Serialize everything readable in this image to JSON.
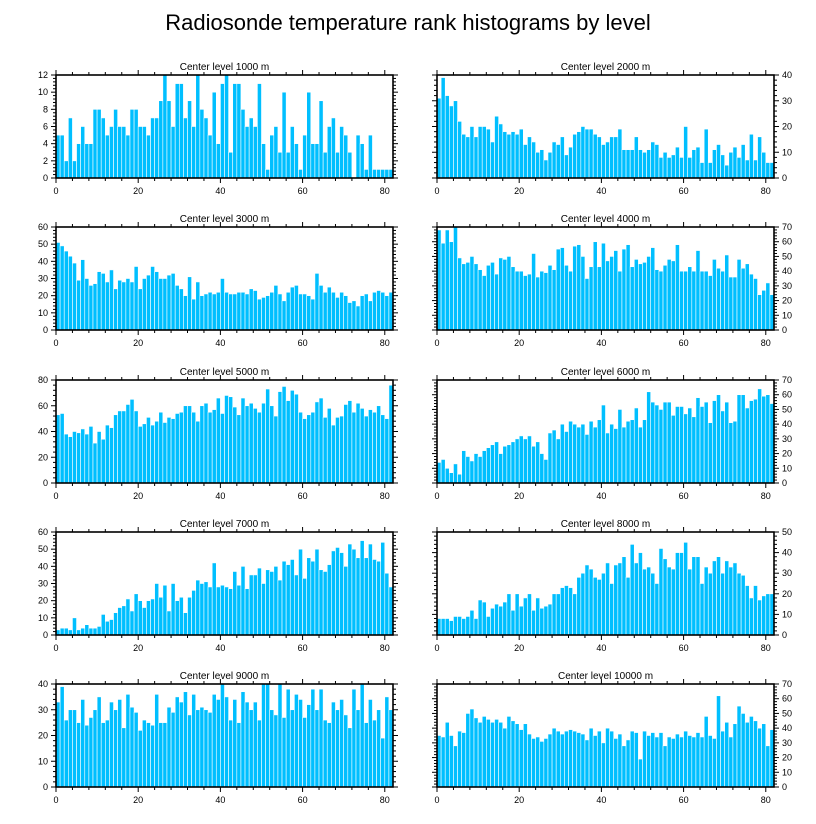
{
  "title": "Radiosonde temperature rank histograms by level",
  "colors": {
    "bar": "#00bfff",
    "frame": "#000000",
    "background": "#ffffff"
  },
  "chart_data": [
    {
      "type": "bar",
      "title": "Center level 1000 m",
      "xlabel": "",
      "ylabel": "",
      "xlim": [
        0,
        82
      ],
      "ylim": [
        0,
        12
      ],
      "xticks": [
        0,
        20,
        40,
        60,
        80
      ],
      "yticks": [
        0,
        2,
        4,
        6,
        8,
        10,
        12
      ],
      "yaxis_side": "left",
      "values": [
        5,
        5,
        2,
        7,
        2,
        4,
        6,
        4,
        4,
        8,
        8,
        7,
        5,
        6,
        8,
        6,
        6,
        5,
        8,
        8,
        6,
        6,
        5,
        7,
        7,
        9,
        12,
        9,
        6,
        11,
        11,
        7,
        9,
        6,
        12,
        8,
        7,
        5,
        10,
        4,
        11,
        12,
        3,
        11,
        11,
        8,
        6,
        7,
        6,
        11,
        4,
        1,
        5,
        6,
        3,
        10,
        3,
        6,
        4,
        1,
        5,
        10,
        4,
        4,
        9,
        3,
        6,
        7,
        3,
        6,
        5,
        3,
        0,
        5,
        4,
        1,
        5,
        1,
        1,
        1,
        1,
        1
      ]
    },
    {
      "type": "bar",
      "title": "Center level 2000 m",
      "xlabel": "",
      "ylabel": "",
      "xlim": [
        0,
        82
      ],
      "ylim": [
        0,
        40
      ],
      "xticks": [
        0,
        20,
        40,
        60,
        80
      ],
      "yticks": [
        0,
        10,
        20,
        30,
        40
      ],
      "yaxis_side": "right",
      "values": [
        31,
        39,
        32,
        28,
        30,
        22,
        17,
        16,
        20,
        16,
        20,
        20,
        19,
        14,
        24,
        21,
        18,
        17,
        18,
        17,
        19,
        13,
        16,
        14,
        10,
        11,
        7,
        10,
        14,
        13,
        16,
        9,
        12,
        17,
        18,
        20,
        19,
        19,
        17,
        16,
        13,
        14,
        16,
        16,
        19,
        11,
        11,
        11,
        16,
        11,
        10,
        11,
        14,
        13,
        8,
        10,
        8,
        9,
        12,
        8,
        20,
        8,
        11,
        12,
        6,
        19,
        6,
        11,
        13,
        9,
        5,
        10,
        12,
        8,
        13,
        7,
        17,
        7,
        16,
        10,
        6,
        6
      ]
    },
    {
      "type": "bar",
      "title": "Center level 3000 m",
      "xlabel": "",
      "ylabel": "",
      "xlim": [
        0,
        82
      ],
      "ylim": [
        0,
        60
      ],
      "xticks": [
        0,
        20,
        40,
        60,
        80
      ],
      "yticks": [
        0,
        10,
        20,
        30,
        40,
        50,
        60
      ],
      "yaxis_side": "left",
      "values": [
        51,
        49,
        46,
        43,
        39,
        29,
        41,
        30,
        26,
        27,
        34,
        33,
        28,
        35,
        24,
        29,
        28,
        30,
        28,
        37,
        24,
        30,
        32,
        37,
        34,
        30,
        30,
        32,
        33,
        26,
        24,
        20,
        31,
        18,
        28,
        20,
        21,
        22,
        21,
        22,
        30,
        22,
        21,
        21,
        22,
        22,
        21,
        24,
        23,
        18,
        19,
        20,
        22,
        26,
        21,
        17,
        22,
        25,
        26,
        21,
        21,
        20,
        18,
        33,
        26,
        22,
        25,
        22,
        19,
        22,
        20,
        16,
        17,
        14,
        20,
        21,
        17,
        22,
        23,
        22,
        20,
        22
      ]
    },
    {
      "type": "bar",
      "title": "Center level 4000 m",
      "xlabel": "",
      "ylabel": "",
      "xlim": [
        0,
        82
      ],
      "ylim": [
        0,
        70
      ],
      "xticks": [
        0,
        20,
        40,
        60,
        80
      ],
      "yticks": [
        0,
        10,
        20,
        30,
        40,
        50,
        60,
        70
      ],
      "yaxis_side": "right",
      "values": [
        68,
        59,
        68,
        60,
        70,
        49,
        45,
        46,
        50,
        45,
        41,
        37,
        44,
        46,
        38,
        49,
        48,
        50,
        43,
        40,
        40,
        37,
        38,
        52,
        36,
        40,
        39,
        44,
        41,
        55,
        56,
        44,
        40,
        57,
        58,
        50,
        35,
        43,
        60,
        43,
        59,
        47,
        50,
        54,
        40,
        55,
        58,
        43,
        48,
        45,
        46,
        50,
        56,
        41,
        40,
        44,
        48,
        47,
        58,
        40,
        40,
        43,
        40,
        54,
        40,
        40,
        37,
        48,
        42,
        40,
        51,
        36,
        36,
        48,
        42,
        45,
        38,
        35,
        24,
        27,
        32,
        24
      ]
    },
    {
      "type": "bar",
      "title": "Center level 5000 m",
      "xlabel": "",
      "ylabel": "",
      "xlim": [
        0,
        82
      ],
      "ylim": [
        0,
        80
      ],
      "xticks": [
        0,
        20,
        40,
        60,
        80
      ],
      "yticks": [
        0,
        20,
        40,
        60,
        80
      ],
      "yaxis_side": "left",
      "values": [
        53,
        54,
        38,
        36,
        40,
        39,
        42,
        38,
        44,
        31,
        40,
        34,
        45,
        43,
        53,
        56,
        56,
        61,
        65,
        56,
        44,
        46,
        51,
        45,
        48,
        55,
        47,
        51,
        50,
        54,
        55,
        60,
        60,
        55,
        48,
        60,
        62,
        55,
        57,
        66,
        54,
        68,
        67,
        59,
        53,
        66,
        60,
        62,
        58,
        55,
        62,
        73,
        60,
        52,
        71,
        75,
        64,
        72,
        69,
        55,
        50,
        53,
        55,
        63,
        66,
        51,
        58,
        45,
        51,
        52,
        61,
        64,
        55,
        62,
        58,
        52,
        57,
        55,
        60,
        53,
        50,
        76
      ]
    },
    {
      "type": "bar",
      "title": "Center level 6000 m",
      "xlabel": "",
      "ylabel": "",
      "xlim": [
        0,
        82
      ],
      "ylim": [
        0,
        70
      ],
      "xticks": [
        0,
        20,
        40,
        60,
        80
      ],
      "yticks": [
        0,
        10,
        20,
        30,
        40,
        50,
        60,
        70
      ],
      "yaxis_side": "right",
      "values": [
        14,
        16,
        10,
        7,
        13,
        6,
        22,
        18,
        15,
        20,
        18,
        22,
        24,
        26,
        28,
        20,
        25,
        26,
        28,
        30,
        32,
        30,
        32,
        25,
        28,
        20,
        16,
        34,
        36,
        30,
        40,
        35,
        42,
        40,
        38,
        40,
        33,
        42,
        38,
        43,
        53,
        34,
        40,
        37,
        50,
        38,
        42,
        43,
        51,
        38,
        43,
        62,
        55,
        53,
        50,
        55,
        55,
        46,
        52,
        52,
        47,
        51,
        45,
        58,
        52,
        55,
        41,
        56,
        60,
        49,
        55,
        41,
        42,
        60,
        60,
        51,
        56,
        57,
        64,
        59,
        60,
        54
      ]
    },
    {
      "type": "bar",
      "title": "Center level 7000 m",
      "xlabel": "",
      "ylabel": "",
      "xlim": [
        0,
        82
      ],
      "ylim": [
        0,
        60
      ],
      "xticks": [
        0,
        20,
        40,
        60,
        80
      ],
      "yticks": [
        0,
        10,
        20,
        30,
        40,
        50,
        60
      ],
      "yaxis_side": "left",
      "values": [
        3,
        4,
        4,
        3,
        10,
        3,
        4,
        6,
        4,
        4,
        5,
        12,
        8,
        9,
        13,
        16,
        17,
        21,
        14,
        24,
        20,
        16,
        20,
        21,
        30,
        22,
        29,
        14,
        30,
        20,
        22,
        13,
        22,
        26,
        32,
        30,
        31,
        28,
        42,
        28,
        29,
        28,
        27,
        37,
        29,
        40,
        27,
        35,
        35,
        39,
        30,
        38,
        37,
        40,
        32,
        43,
        41,
        44,
        35,
        50,
        33,
        45,
        43,
        50,
        38,
        37,
        41,
        49,
        51,
        48,
        40,
        53,
        50,
        45,
        55,
        45,
        53,
        44,
        43,
        54,
        36,
        28
      ]
    },
    {
      "type": "bar",
      "title": "Center level 8000 m",
      "xlabel": "",
      "ylabel": "",
      "xlim": [
        0,
        82
      ],
      "ylim": [
        0,
        50
      ],
      "xticks": [
        0,
        20,
        40,
        60,
        80
      ],
      "yticks": [
        0,
        10,
        20,
        30,
        40,
        50
      ],
      "yaxis_side": "right",
      "values": [
        8,
        8,
        8,
        7,
        9,
        9,
        8,
        9,
        12,
        8,
        17,
        16,
        9,
        13,
        15,
        14,
        16,
        20,
        12,
        20,
        14,
        18,
        20,
        12,
        18,
        13,
        14,
        15,
        20,
        20,
        23,
        24,
        23,
        20,
        28,
        30,
        34,
        32,
        28,
        27,
        30,
        35,
        25,
        34,
        35,
        38,
        28,
        44,
        35,
        40,
        32,
        33,
        30,
        25,
        42,
        37,
        33,
        32,
        40,
        40,
        45,
        32,
        38,
        38,
        25,
        33,
        30,
        36,
        38,
        30,
        36,
        33,
        35,
        30,
        29,
        24,
        18,
        24,
        17,
        19,
        20,
        20
      ]
    },
    {
      "type": "bar",
      "title": "Center level 9000 m",
      "xlabel": "",
      "ylabel": "",
      "xlim": [
        0,
        82
      ],
      "ylim": [
        0,
        40
      ],
      "xticks": [
        0,
        20,
        40,
        60,
        80
      ],
      "yticks": [
        0,
        10,
        20,
        30,
        40
      ],
      "yaxis_side": "left",
      "values": [
        33,
        39,
        26,
        30,
        30,
        25,
        34,
        24,
        27,
        30,
        35,
        25,
        26,
        33,
        30,
        34,
        23,
        36,
        31,
        29,
        22,
        26,
        25,
        24,
        36,
        25,
        25,
        31,
        29,
        35,
        33,
        37,
        28,
        36,
        30,
        31,
        30,
        29,
        36,
        34,
        40,
        35,
        26,
        34,
        25,
        37,
        33,
        30,
        33,
        26,
        40,
        40,
        30,
        28,
        40,
        27,
        38,
        30,
        36,
        34,
        27,
        32,
        38,
        30,
        38,
        26,
        25,
        33,
        30,
        34,
        28,
        23,
        38,
        30,
        40,
        25,
        34,
        26,
        30,
        19,
        35,
        30
      ]
    },
    {
      "type": "bar",
      "title": "Center level 10000 m",
      "xlabel": "",
      "ylabel": "",
      "xlim": [
        0,
        82
      ],
      "ylim": [
        0,
        70
      ],
      "xticks": [
        0,
        20,
        40,
        60,
        80
      ],
      "yticks": [
        0,
        10,
        20,
        30,
        40,
        50,
        60,
        70
      ],
      "yaxis_side": "right",
      "values": [
        35,
        34,
        44,
        35,
        28,
        38,
        37,
        50,
        53,
        47,
        44,
        48,
        46,
        44,
        46,
        44,
        40,
        48,
        45,
        43,
        39,
        43,
        36,
        33,
        34,
        31,
        33,
        36,
        40,
        38,
        36,
        38,
        39,
        38,
        37,
        36,
        32,
        40,
        35,
        38,
        30,
        40,
        38,
        33,
        36,
        28,
        32,
        38,
        37,
        19,
        38,
        35,
        37,
        34,
        37,
        28,
        34,
        33,
        36,
        34,
        38,
        35,
        34,
        37,
        34,
        48,
        35,
        33,
        62,
        38,
        44,
        34,
        43,
        55,
        50,
        44,
        48,
        45,
        40,
        43,
        28,
        39
      ]
    }
  ]
}
